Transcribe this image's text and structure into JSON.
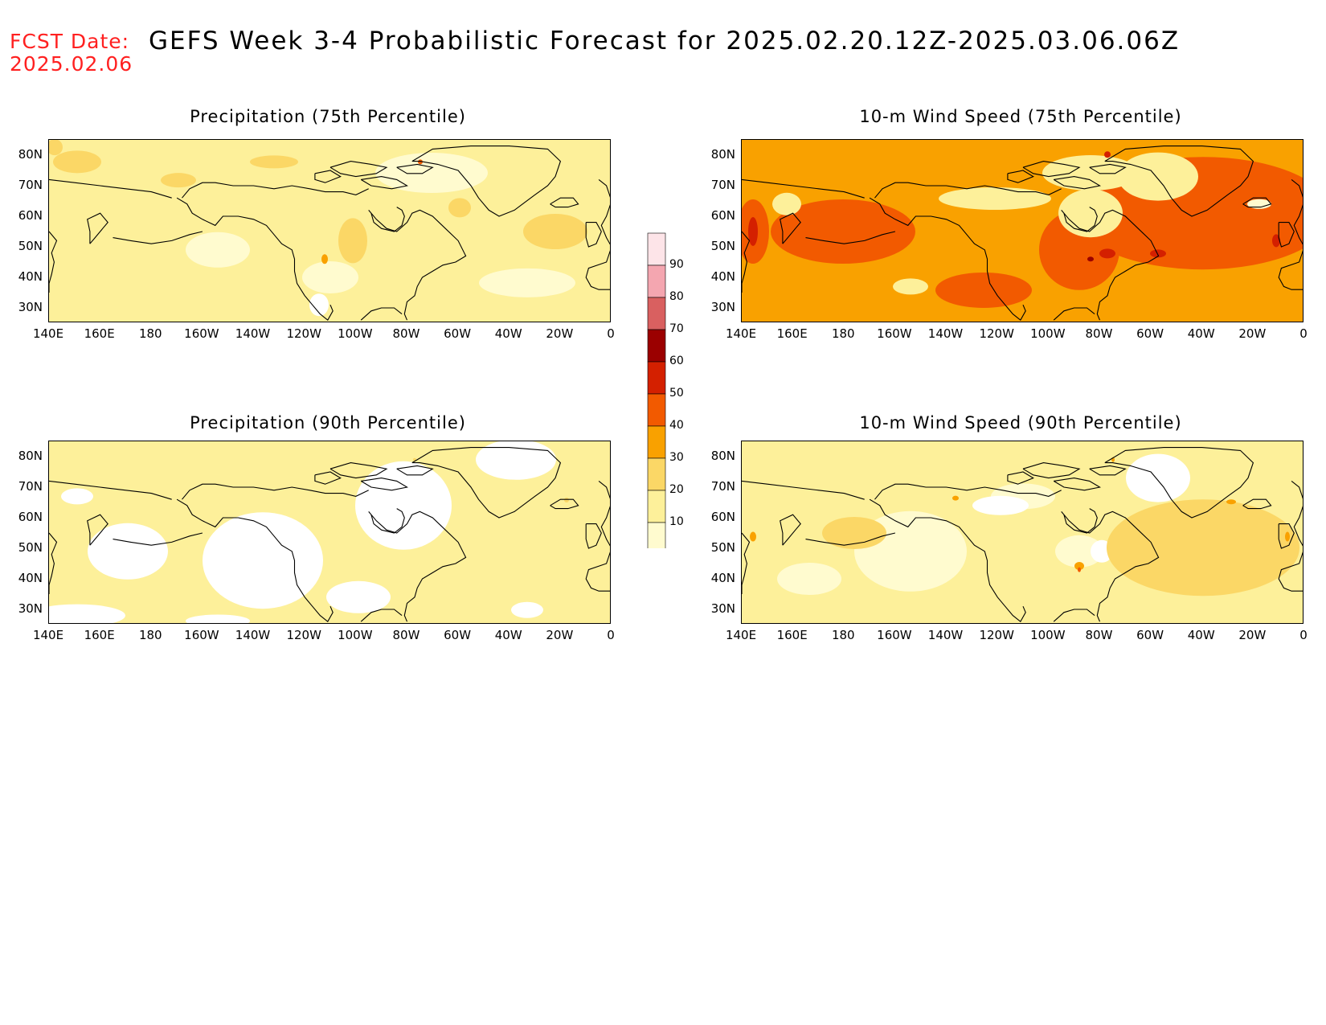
{
  "header": {
    "fcst_label": "FCST Date:",
    "fcst_date": "2025.02.06",
    "title": "GEFS Week 3-4 Probabilistic Forecast for 2025.02.20.12Z-2025.03.06.06Z"
  },
  "panels": [
    {
      "title": "Precipitation (75th Percentile)",
      "base_color": "#fbe57e",
      "level": "20-30"
    },
    {
      "title": "10-m Wind Speed (75th Percentile)",
      "base_color": "#f9a100",
      "level": "30-40"
    },
    {
      "title": "Precipitation (90th Percentile)",
      "base_color": "#ffffff",
      "level": "<10-20"
    },
    {
      "title": "10-m Wind Speed (90th Percentile)",
      "base_color": "#fdf5b0",
      "level": "10-20"
    }
  ],
  "axes": {
    "lat_labels": [
      "80N",
      "70N",
      "60N",
      "50N",
      "40N",
      "30N"
    ],
    "lon_labels": [
      "140E",
      "160E",
      "180",
      "160W",
      "140W",
      "120W",
      "100W",
      "80W",
      "60W",
      "40W",
      "20W",
      "0"
    ]
  },
  "colorbar": {
    "levels": [
      "10",
      "20",
      "30",
      "40",
      "50",
      "60",
      "70",
      "80",
      "90"
    ],
    "colors": [
      "#fffbcf",
      "#fdf09a",
      "#fbd766",
      "#f9a100",
      "#f25a00",
      "#d42000",
      "#9b0000",
      "#d96060",
      "#f4a6b0",
      "#fde4e8"
    ]
  }
}
